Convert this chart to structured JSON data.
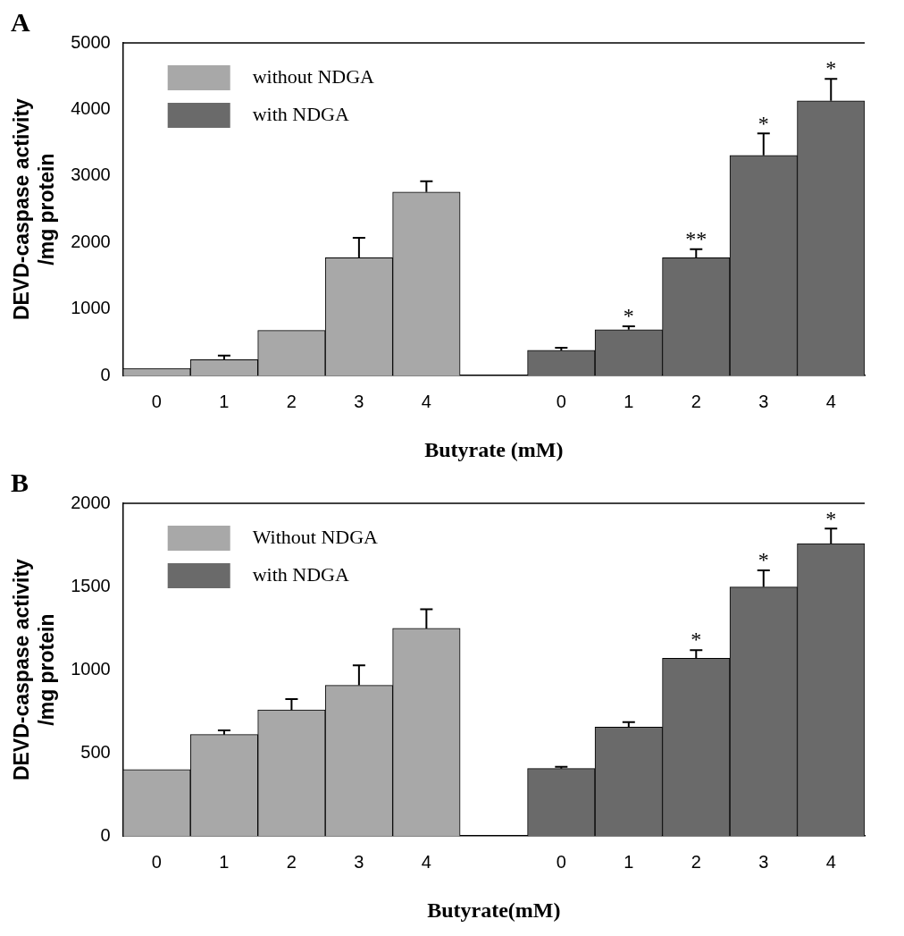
{
  "chart_data": [
    {
      "type": "bar",
      "title": "A",
      "xlabel": "Butyrate (mM)",
      "ylabel": "DEVD-caspase activity\n/mg protein",
      "categories": [
        "0",
        "1",
        "2",
        "3",
        "4",
        null,
        "0",
        "1",
        "2",
        "3",
        "4"
      ],
      "legend": "top left",
      "ylim": [
        0,
        5000
      ],
      "yticks": [
        0,
        1000,
        2000,
        3000,
        4000,
        5000
      ],
      "series": [
        {
          "name": "without NDGA",
          "color": "#a8a8a8",
          "values": [
            110,
            240,
            680,
            1770,
            2760,
            null,
            null,
            null,
            null,
            null,
            null
          ],
          "errors": [
            null,
            60,
            null,
            300,
            160,
            null,
            null,
            null,
            null,
            null,
            null
          ]
        },
        {
          "name": "with NDGA",
          "color": "#6a6a6a",
          "values": [
            null,
            null,
            null,
            null,
            null,
            null,
            380,
            690,
            1770,
            3310,
            4130
          ],
          "errors": [
            null,
            null,
            null,
            null,
            null,
            null,
            40,
            50,
            130,
            330,
            330
          ],
          "value_labels": [
            null,
            null,
            null,
            null,
            null,
            null,
            null,
            "*",
            "**",
            "*",
            "*"
          ]
        }
      ]
    },
    {
      "type": "bar",
      "title": "B",
      "xlabel": "Butyrate(mM)",
      "ylabel": "DEVD-caspase activity\n/mg protein",
      "categories": [
        "0",
        "1",
        "2",
        "3",
        "4",
        null,
        "0",
        "1",
        "2",
        "3",
        "4"
      ],
      "legend": "top left",
      "ylim": [
        0,
        2000
      ],
      "yticks": [
        0,
        500,
        1000,
        1500,
        2000
      ],
      "series": [
        {
          "name": "Without NDGA",
          "color": "#a8a8a8",
          "values": [
            400,
            610,
            758,
            906,
            1248,
            null,
            null,
            null,
            null,
            null,
            null
          ],
          "errors": [
            null,
            25,
            65,
            120,
            115,
            null,
            null,
            null,
            null,
            null,
            null
          ]
        },
        {
          "name": "with NDGA",
          "color": "#6a6a6a",
          "values": [
            null,
            null,
            null,
            null,
            null,
            null,
            406,
            655,
            1068,
            1497,
            1758
          ],
          "errors": [
            null,
            null,
            null,
            null,
            null,
            null,
            10,
            30,
            50,
            100,
            90
          ],
          "value_labels": [
            null,
            null,
            null,
            null,
            null,
            null,
            null,
            null,
            "*",
            "*",
            "*"
          ]
        }
      ]
    }
  ]
}
